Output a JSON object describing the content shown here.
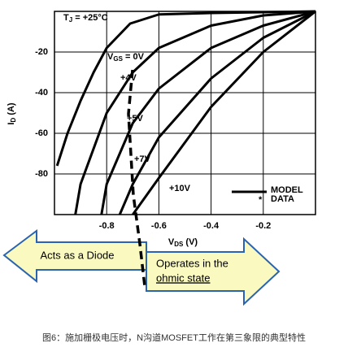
{
  "chart_data": {
    "type": "line",
    "annotation": {
      "tj": [
        "T",
        "J",
        " = +25°C"
      ],
      "vgs": [
        "V",
        "GS",
        " = "
      ]
    },
    "x_label": [
      "V",
      "DS",
      " (V)"
    ],
    "y_label": [
      "I",
      "D",
      " (A)"
    ],
    "xlim": [
      -1.0,
      0
    ],
    "ylim": [
      -100,
      0
    ],
    "xticks": [
      -0.8,
      -0.6,
      -0.4,
      -0.2
    ],
    "yticks": [
      -20,
      -40,
      -60,
      -80
    ],
    "grid": true,
    "series": [
      {
        "name": "0V",
        "color": "#000000",
        "x": [
          -0.99,
          -0.95,
          -0.9,
          -0.85,
          -0.8,
          -0.71,
          -0.6,
          -0.4,
          -0.2,
          0
        ],
        "values": [
          -76,
          -60,
          -44,
          -30,
          -18,
          -6,
          -1.5,
          -0.8,
          -0.4,
          0
        ]
      },
      {
        "name": "+4V",
        "color": "#000000",
        "x": [
          -0.92,
          -0.9,
          -0.8,
          -0.7,
          -0.6,
          -0.4,
          -0.2,
          0
        ],
        "values": [
          -100,
          -85,
          -50,
          -30,
          -18,
          -7,
          -2,
          0
        ]
      },
      {
        "name": "+5V",
        "color": "#000000",
        "x": [
          -0.82,
          -0.8,
          -0.7,
          -0.6,
          -0.4,
          -0.2,
          0
        ],
        "values": [
          -100,
          -85,
          -55,
          -38,
          -18,
          -7,
          0
        ]
      },
      {
        "name": "+7V",
        "color": "#000000",
        "x": [
          -0.75,
          -0.7,
          -0.6,
          -0.4,
          -0.2,
          0
        ],
        "values": [
          -100,
          -85,
          -62,
          -33,
          -13,
          0
        ]
      },
      {
        "name": "+10V",
        "color": "#000000",
        "x": [
          -0.7,
          -0.6,
          -0.4,
          -0.2,
          0
        ],
        "values": [
          -100,
          -82,
          -47,
          -20,
          0
        ]
      }
    ],
    "legend": {
      "model": "MODEL",
      "data_marker": "*",
      "data": "DATA"
    },
    "left_arrow": "Acts as a Diode",
    "right_arrow": [
      "Operates in the",
      "ohmic state"
    ],
    "caption": "图6：施加栅极电压时，N沟道MOSFET工作在第三象限的典型特性"
  }
}
